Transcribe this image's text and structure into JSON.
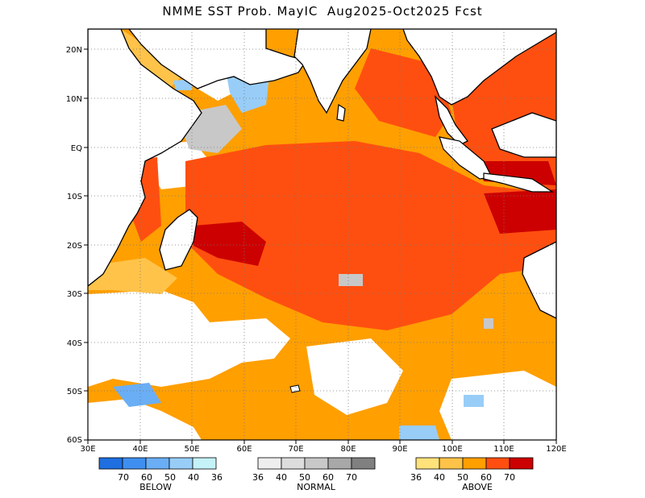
{
  "title": "NMME SST Prob. MayIC  Aug2025-Oct2025 Fcst",
  "map": {
    "region": "Indian Ocean",
    "lon_range": [
      30,
      120
    ],
    "lat_range": [
      -60,
      24
    ],
    "x_ticks": [
      "30E",
      "40E",
      "50E",
      "60E",
      "70E",
      "80E",
      "90E",
      "100E",
      "110E",
      "120E"
    ],
    "y_ticks": [
      "20N",
      "10N",
      "EQ",
      "10S",
      "20S",
      "30S",
      "40S",
      "50S",
      "60S"
    ],
    "grid": "dotted"
  },
  "legends": {
    "below": {
      "title": "BELOW",
      "labels": [
        "70",
        "60",
        "50",
        "40",
        "36"
      ],
      "colors": [
        "#1f6fe0",
        "#3f8ff0",
        "#6aaef5",
        "#98cdf8",
        "#c4f2f8"
      ]
    },
    "normal": {
      "title": "NORMAL",
      "labels": [
        "36",
        "40",
        "50",
        "60",
        "70"
      ],
      "colors": [
        "#eeeeee",
        "#dddddd",
        "#c8c8c8",
        "#a8a8a8",
        "#808080"
      ]
    },
    "above": {
      "title": "ABOVE",
      "labels": [
        "36",
        "40",
        "50",
        "60",
        "70"
      ],
      "colors": [
        "#ffe27a",
        "#ffc34a",
        "#ff9f00",
        "#ff4f10",
        "#cc0000"
      ]
    }
  }
}
